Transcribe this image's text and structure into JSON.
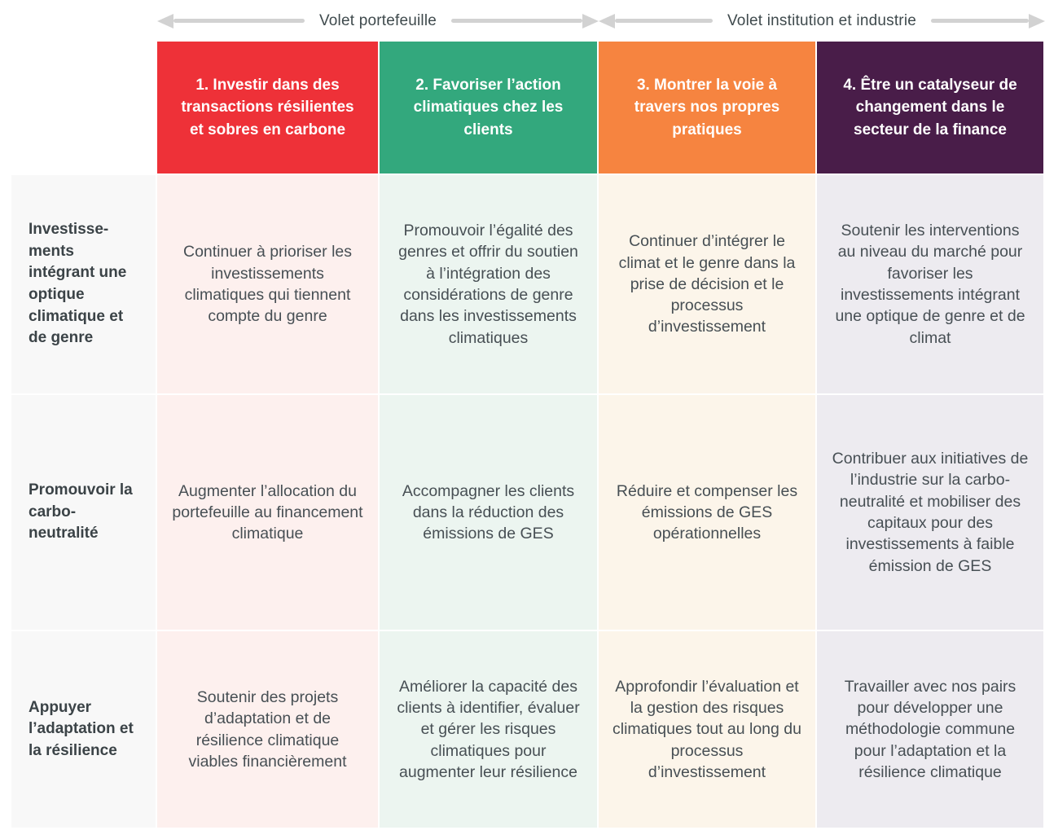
{
  "banner": {
    "portfolio_label": "Volet portefeuille",
    "institution_label": "Volet institution et industrie"
  },
  "colors": {
    "col1": "#ee3138",
    "col2": "#33a87d",
    "col3": "#f68440",
    "col4": "#491d49",
    "tint1": "#fdf0ee",
    "tint2": "#ecf5f0",
    "tint3": "#fcf5ea",
    "tint4": "#edebf0",
    "rowhead_bg": "#f8f8f8",
    "arrow_gray": "#d2d2d2"
  },
  "columns": [
    {
      "label": "1. Investir dans des transactions résilientes et sobres en carbone"
    },
    {
      "label": "2. Favoriser l’action climatiques chez les clients"
    },
    {
      "label": "3. Montrer la voie à travers nos propres pratiques"
    },
    {
      "label": "4. Être un catalyseur de changement dans le secteur de la finance"
    }
  ],
  "rows": [
    {
      "label": "Investisse-ments intégrant une optique climatique et de genre",
      "cells": [
        "Continuer à prioriser les investissements climatiques qui tiennent compte du genre",
        "Promouvoir l’égalité des genres et offrir du soutien à l’intégration des considérations de genre dans les investissements climatiques",
        "Continuer d’intégrer le climat et le genre dans la prise de décision et le processus d’investissement",
        "Soutenir les interventions au niveau du marché pour favoriser les investissements intégrant une optique de genre et de climat"
      ]
    },
    {
      "label": "Promouvoir la carbo-neutralité",
      "cells": [
        "Augmenter l’allocation du portefeuille au financement climatique",
        "Accompagner les clients dans la réduction des émissions de GES",
        "Réduire et compenser les émissions de GES opérationnelles",
        "Contribuer aux initiatives de l’industrie sur la carbo-neutralité et mobiliser des capitaux pour des investissements à faible émission de GES"
      ]
    },
    {
      "label": "Appuyer l’adaptation et la résilience",
      "cells": [
        "Soutenir des projets d’adaptation et de résilience climatique viables financièrement",
        "Améliorer la capacité des clients à identifier, évaluer et gérer les risques climatiques pour augmenter leur résilience",
        "Approfondir l’évaluation et la gestion des risques climatiques tout au long du processus d’investissement",
        "Travailler avec nos pairs pour développer une méthodologie commune pour l’adaptation et la résilience climatique"
      ]
    }
  ]
}
